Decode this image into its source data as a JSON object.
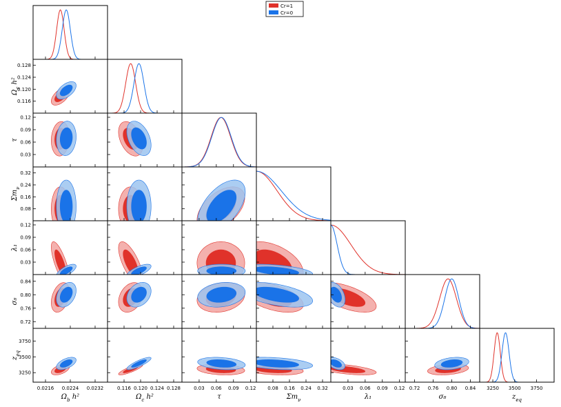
{
  "chart_data": {
    "type": "triangle-corner",
    "title": "",
    "legend": {
      "placement": "top-center",
      "entries": [
        {
          "label": "Cr=1",
          "color": "#e0322a"
        },
        {
          "label": "Cr=0",
          "color": "#1a73e8"
        }
      ]
    },
    "colors": {
      "Cr=1": {
        "line": "#e0322a",
        "fill68": "#e0322a",
        "fill95": "#f2a3a0"
      },
      "Cr=0": {
        "line": "#1a73e8",
        "fill68": "#1a73e8",
        "fill95": "#9cc4f0"
      }
    },
    "parameters": [
      {
        "key": "ombh2",
        "label": "Ω_b h²",
        "range": [
          0.0212,
          0.0236
        ],
        "ticks": [
          0.0216,
          0.0224,
          0.0232
        ],
        "tick_labels": [
          "0.0216",
          "0.0224",
          "0.0232"
        ],
        "dist": {
          "Cr=1": {
            "mean": 0.02208,
            "sd": 0.00012
          },
          "Cr=0": {
            "mean": 0.02227,
            "sd": 0.00013
          }
        }
      },
      {
        "key": "omch2",
        "label": "Ω_c h²",
        "range": [
          0.112,
          0.13
        ],
        "ticks": [
          0.116,
          0.12,
          0.124,
          0.128
        ],
        "tick_labels": [
          "0.116",
          "0.120",
          "0.124",
          "0.128"
        ],
        "dist": {
          "Cr=1": {
            "mean": 0.1176,
            "sd": 0.0012
          },
          "Cr=0": {
            "mean": 0.1196,
            "sd": 0.0012
          }
        }
      },
      {
        "key": "tau",
        "label": "τ",
        "range": [
          0.0,
          0.13
        ],
        "ticks": [
          0.03,
          0.06,
          0.09,
          0.12
        ],
        "tick_labels": [
          "0.03",
          "0.06",
          "0.09",
          "0.12"
        ],
        "dist": {
          "Cr=1": {
            "mean": 0.068,
            "sd": 0.017
          },
          "Cr=0": {
            "mean": 0.069,
            "sd": 0.017
          }
        }
      },
      {
        "key": "mnu",
        "label": "Σm_ν",
        "range": [
          0.0,
          0.36
        ],
        "ticks": [
          0.08,
          0.16,
          0.24,
          0.32
        ],
        "tick_labels": [
          "0.08",
          "0.16",
          "0.24",
          "0.32"
        ],
        "dist": {
          "Cr=1": {
            "halfgauss_sd": 0.1
          },
          "Cr=0": {
            "halfgauss_sd": 0.12
          }
        }
      },
      {
        "key": "lambda1",
        "label": "λ₁",
        "range": [
          0.0,
          0.13
        ],
        "ticks": [
          0.03,
          0.06,
          0.09,
          0.12
        ],
        "tick_labels": [
          "0.03",
          "0.06",
          "0.09",
          "0.12"
        ],
        "dist": {
          "Cr=1": {
            "halfgauss_sd": 0.035
          },
          "Cr=0": {
            "halfgauss_sd": 0.011
          }
        }
      },
      {
        "key": "sigma8",
        "label": "σ₈",
        "range": [
          0.7,
          0.86
        ],
        "ticks": [
          0.72,
          0.76,
          0.8,
          0.84
        ],
        "tick_labels": [
          "0.72",
          "0.76",
          "0.80",
          "0.84"
        ],
        "dist": {
          "Cr=1": {
            "mean": 0.792,
            "sd": 0.018
          },
          "Cr=0": {
            "mean": 0.8,
            "sd": 0.015
          }
        }
      },
      {
        "key": "zeq",
        "label": "z_eq",
        "range": [
          3100,
          3950
        ],
        "ticks": [
          3250,
          3500,
          3750
        ],
        "tick_labels": [
          "3250",
          "3500",
          "3750"
        ],
        "dist": {
          "Cr=1": {
            "mean": 3300,
            "sd": 35
          },
          "Cr=0": {
            "mean": 3395,
            "sd": 40
          }
        }
      }
    ],
    "correlations": {
      "Cr=1": {
        "1,0": 0.55,
        "2,0": 0.1,
        "2,1": -0.4,
        "3,0": 0.0,
        "3,1": 0.0,
        "3,2": 0.5,
        "4,0": -0.75,
        "4,1": -0.7,
        "4,2": 0.0,
        "4,3": -0.45,
        "5,0": 0.35,
        "5,1": 0.3,
        "5,2": 0.2,
        "5,3": -0.5,
        "5,4": -0.6,
        "6,0": 0.5,
        "6,1": 0.85,
        "6,2": -0.2,
        "6,3": -0.3,
        "6,4": -0.55,
        "6,5": 0.3
      },
      "Cr=0": {
        "1,0": 0.55,
        "2,0": 0.1,
        "2,1": -0.4,
        "3,0": 0.0,
        "3,1": 0.0,
        "3,2": 0.55,
        "4,0": 0.7,
        "4,1": 0.7,
        "4,2": 0.0,
        "4,3": -0.45,
        "5,0": 0.35,
        "5,1": 0.3,
        "5,2": 0.2,
        "5,3": -0.5,
        "5,4": -0.4,
        "6,0": 0.55,
        "6,1": 0.85,
        "6,2": -0.25,
        "6,3": -0.35,
        "6,4": -0.45,
        "6,5": 0.3
      }
    }
  }
}
